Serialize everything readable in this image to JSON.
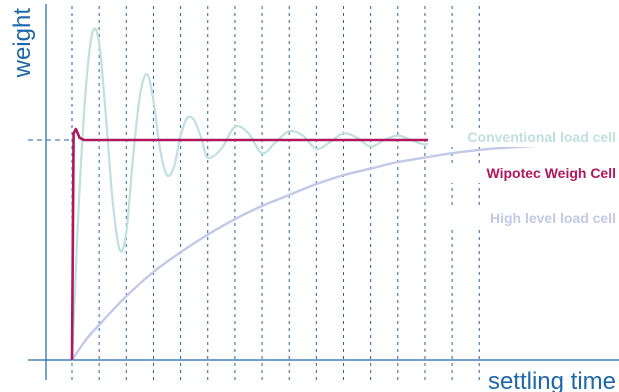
{
  "chart_data": {
    "type": "line",
    "title": "",
    "xlabel": "settling time",
    "ylabel": "weight",
    "xlim": [
      0,
      10
    ],
    "ylim": [
      0,
      1.6
    ],
    "target_value": 1.0,
    "grid": {
      "vertical_dashed": true,
      "x_positions": [
        0.0,
        0.5,
        1.0,
        1.5,
        2.0,
        2.5,
        3.0,
        3.5,
        4.0,
        4.5,
        5.0,
        5.5,
        6.0,
        6.5,
        7.0,
        7.5
      ]
    },
    "legend": "right",
    "series": [
      {
        "name": "Conventional load cell",
        "color": "#bfe0dc",
        "x": [
          0.0,
          0.12,
          0.25,
          0.38,
          0.5,
          0.62,
          0.75,
          0.88,
          1.0,
          1.12,
          1.25,
          1.38,
          1.5,
          1.62,
          1.75,
          1.88,
          2.0,
          2.12,
          2.25,
          2.38,
          2.5,
          2.75,
          3.0,
          3.25,
          3.5,
          3.75,
          4.0,
          4.25,
          4.5,
          4.75,
          5.0,
          5.25,
          5.5,
          5.75,
          6.0,
          6.25,
          6.5,
          6.75,
          7.0,
          7.25,
          7.5,
          7.75,
          8.0,
          8.5,
          9.0,
          10.0
        ],
        "values": [
          0.0,
          0.68,
          1.22,
          1.49,
          1.44,
          1.12,
          0.72,
          0.5,
          0.58,
          0.91,
          1.2,
          1.3,
          1.18,
          0.96,
          0.84,
          0.88,
          1.02,
          1.1,
          1.09,
          1.01,
          0.92,
          0.96,
          1.06,
          1.03,
          0.94,
          0.99,
          1.04,
          1.02,
          0.96,
          0.99,
          1.03,
          1.01,
          0.97,
          1.0,
          1.02,
          1.0,
          0.98,
          1.0,
          1.01,
          1.0,
          0.99,
          1.0,
          1.0,
          1.0,
          1.0,
          1.0
        ]
      },
      {
        "name": "Wipotec Weigh Cell",
        "color": "#b0175e",
        "x": [
          0.0,
          0.03,
          0.07,
          0.14,
          0.22,
          0.35,
          0.5,
          1.0,
          2.0,
          4.0,
          6.0,
          8.0,
          10.0
        ],
        "values": [
          0.0,
          1.03,
          1.05,
          1.01,
          1.0,
          1.0,
          1.0,
          1.0,
          1.0,
          1.0,
          1.0,
          1.0,
          1.0
        ]
      },
      {
        "name": "High level load cell",
        "color": "#c2c8e6",
        "x": [
          0.0,
          0.25,
          0.5,
          1.0,
          1.5,
          2.0,
          2.5,
          3.0,
          3.5,
          4.0,
          4.5,
          5.0,
          5.5,
          6.0,
          6.5,
          7.0,
          7.5,
          8.0,
          9.0,
          10.0
        ],
        "values": [
          0.0,
          0.09,
          0.16,
          0.29,
          0.4,
          0.49,
          0.57,
          0.64,
          0.7,
          0.75,
          0.8,
          0.84,
          0.87,
          0.9,
          0.92,
          0.94,
          0.955,
          0.965,
          0.98,
          0.99
        ]
      }
    ]
  }
}
